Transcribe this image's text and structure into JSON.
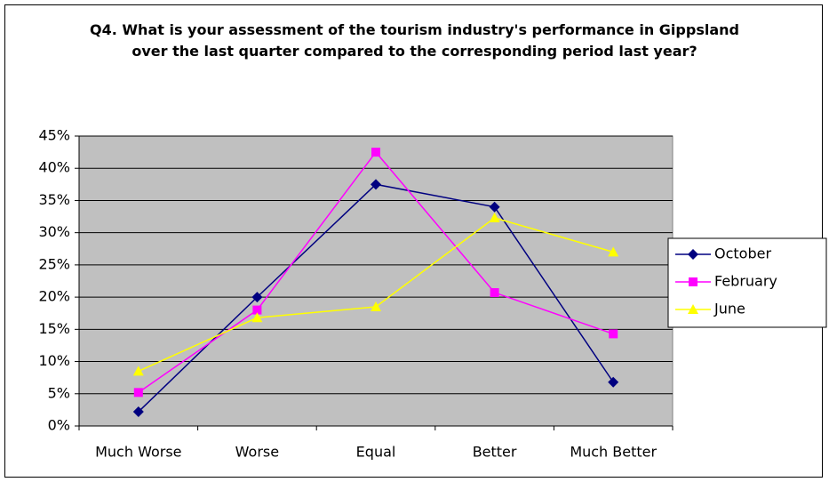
{
  "chart_data": {
    "type": "line",
    "title": "Q4. What is your assessment of the tourism industry's performance in Gippsland over the last quarter compared to the corresponding period last year?",
    "categories": [
      "Much Worse",
      "Worse",
      "Equal",
      "Better",
      "Much Better"
    ],
    "series": [
      {
        "name": "October",
        "color": "#000080",
        "marker": "diamond",
        "values": [
          2.2,
          20,
          37.5,
          34,
          6.8
        ]
      },
      {
        "name": "February",
        "color": "#FF00FF",
        "marker": "square",
        "values": [
          5.2,
          18,
          42.5,
          20.7,
          14.3
        ]
      },
      {
        "name": "June",
        "color": "#FFFF00",
        "marker": "triangle",
        "values": [
          8.5,
          16.8,
          18.5,
          32.3,
          27
        ]
      }
    ],
    "ylim": [
      0,
      45
    ],
    "yticks": [
      {
        "value": 0,
        "label": "0%"
      },
      {
        "value": 5,
        "label": "5%"
      },
      {
        "value": 10,
        "label": "10%"
      },
      {
        "value": 15,
        "label": "15%"
      },
      {
        "value": 20,
        "label": "20%"
      },
      {
        "value": 25,
        "label": "25%"
      },
      {
        "value": 30,
        "label": "30%"
      },
      {
        "value": 35,
        "label": "35%"
      },
      {
        "value": 40,
        "label": "40%"
      },
      {
        "value": 45,
        "label": "45%"
      }
    ],
    "grid": true,
    "legend": "right"
  }
}
